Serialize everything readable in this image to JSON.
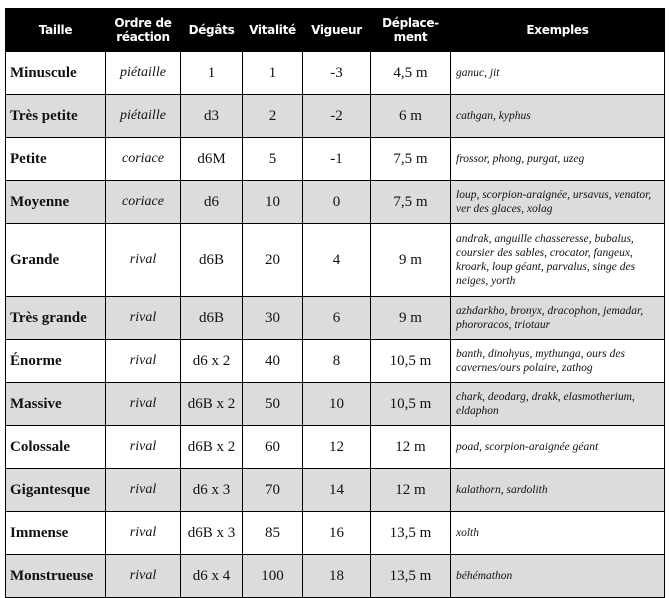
{
  "headers": {
    "size": "Taille",
    "order": "Ordre de réaction",
    "damage": "Dégâts",
    "vitality": "Vitalité",
    "vigor": "Vigueur",
    "movement": "Déplace-ment",
    "examples": "Exemples"
  },
  "rows": [
    {
      "size": "Minuscule",
      "order": "piétaille",
      "damage": "1",
      "vitality": "1",
      "vigor": "-3",
      "movement": "4,5 m",
      "examples": "ganuc, jit"
    },
    {
      "size": "Très petite",
      "order": "piétaille",
      "damage": "d3",
      "vitality": "2",
      "vigor": "-2",
      "movement": "6 m",
      "examples": "cathgan, kyphus"
    },
    {
      "size": "Petite",
      "order": "coriace",
      "damage": "d6M",
      "vitality": "5",
      "vigor": "-1",
      "movement": "7,5 m",
      "examples": "frossor, phong, purgat, uzeg"
    },
    {
      "size": "Moyenne",
      "order": "coriace",
      "damage": "d6",
      "vitality": "10",
      "vigor": "0",
      "movement": "7,5 m",
      "examples": "loup, scorpion-araignée, ursavus, venator, ver des glaces, xolag"
    },
    {
      "size": "Grande",
      "order": "rival",
      "damage": "d6B",
      "vitality": "20",
      "vigor": "4",
      "movement": "9 m",
      "examples": "andrak, anguille chasseresse, bubalus, coursier des sables, crocator, fangeux, kroark, loup géant, parvalus, singe des neiges, yorth"
    },
    {
      "size": "Très grande",
      "order": "rival",
      "damage": "d6B",
      "vitality": "30",
      "vigor": "6",
      "movement": "9 m",
      "examples": "azhdarkho, bronyx, dracophon, jemadar, phororacos, triotaur"
    },
    {
      "size": "Énorme",
      "order": "rival",
      "damage": "d6 x 2",
      "vitality": "40",
      "vigor": "8",
      "movement": "10,5 m",
      "examples": "banth, dinohyus, mythunga, ours des cavernes/ours polaire, zathog"
    },
    {
      "size": "Massive",
      "order": "rival",
      "damage": "d6B x 2",
      "vitality": "50",
      "vigor": "10",
      "movement": "10,5 m",
      "examples": "chark, deodarg, drakk, elasmotherium, eldaphon"
    },
    {
      "size": "Colossale",
      "order": "rival",
      "damage": "d6B x 2",
      "vitality": "60",
      "vigor": "12",
      "movement": "12 m",
      "examples": "poad, scorpion-araignée géant"
    },
    {
      "size": "Gigantesque",
      "order": "rival",
      "damage": "d6 x 3",
      "vitality": "70",
      "vigor": "14",
      "movement": "12 m",
      "examples": "kalathorn, sardolith"
    },
    {
      "size": "Immense",
      "order": "rival",
      "damage": "d6B x 3",
      "vitality": "85",
      "vigor": "16",
      "movement": "13,5 m",
      "examples": "xolth"
    },
    {
      "size": "Monstrueuse",
      "order": "rival",
      "damage": "d6 x 4",
      "vitality": "100",
      "vigor": "18",
      "movement": "13,5 m",
      "examples": "béhémathon"
    }
  ]
}
